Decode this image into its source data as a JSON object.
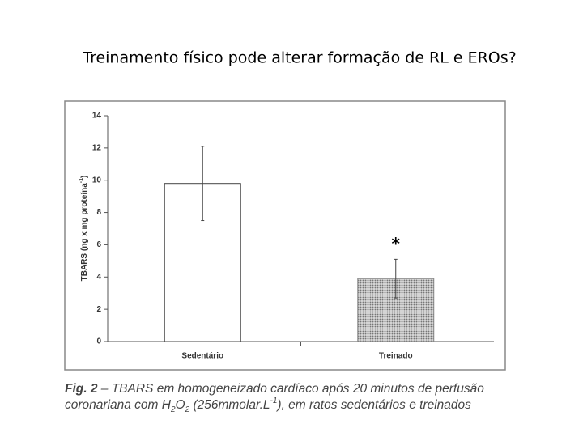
{
  "chart_data": {
    "type": "bar",
    "title": "Treinamento físico pode alterar formação de RL e EROs?",
    "y_label_parts": [
      "TBARS (ng x mg proteína",
      "-1",
      ")"
    ],
    "categories": [
      "Sedentário",
      "Treinado"
    ],
    "values": [
      9.8,
      3.9
    ],
    "errors": [
      2.3,
      1.2
    ],
    "significance_labels": [
      null,
      "*"
    ],
    "colors": [
      "#ffffff",
      "#8a8a8a"
    ],
    "patterns": [
      null,
      "dots"
    ],
    "ylim": [
      0,
      14
    ],
    "yticks": [
      0,
      2,
      4,
      6,
      8,
      10,
      12,
      14
    ],
    "caption": {
      "label": "Fig. 2",
      "line1": " – TBARS em homogeneizado cardíaco após 20 minutos de perfusão",
      "line2_parts": [
        "coronariana com H",
        "2",
        "O",
        "2",
        " (256mmolar.L",
        "-1",
        "), em ratos sedentários e treinados"
      ]
    }
  }
}
